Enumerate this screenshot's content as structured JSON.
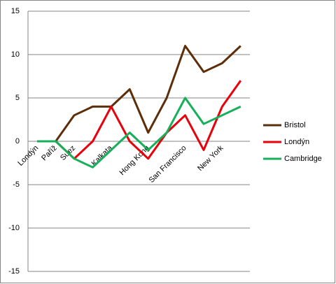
{
  "chart_data": {
    "type": "line",
    "categories": [
      "Londýn",
      "Paříž",
      "Suez",
      null,
      "Kalkata",
      null,
      "Hong Kong",
      null,
      "San Francisco",
      null,
      "New York",
      null
    ],
    "series": [
      {
        "name": "Bristol",
        "color": "#5c2e0a",
        "values": [
          0,
          0,
          3,
          4,
          4,
          6,
          1,
          5,
          11,
          8,
          9,
          11
        ]
      },
      {
        "name": "Londýn",
        "color": "#e8000b",
        "values": [
          0,
          0,
          -2,
          0,
          4,
          0,
          -2,
          1,
          3,
          -1,
          4,
          7
        ]
      },
      {
        "name": "Cambridge",
        "color": "#16b05a",
        "values": [
          0,
          0,
          -2,
          -3,
          -1,
          1,
          -1,
          1,
          5,
          2,
          3,
          4
        ]
      }
    ],
    "ylim": [
      -15,
      15
    ],
    "yticks": [
      -15,
      -10,
      -5,
      0,
      5,
      10,
      15
    ],
    "grid": true,
    "legend": "right"
  }
}
